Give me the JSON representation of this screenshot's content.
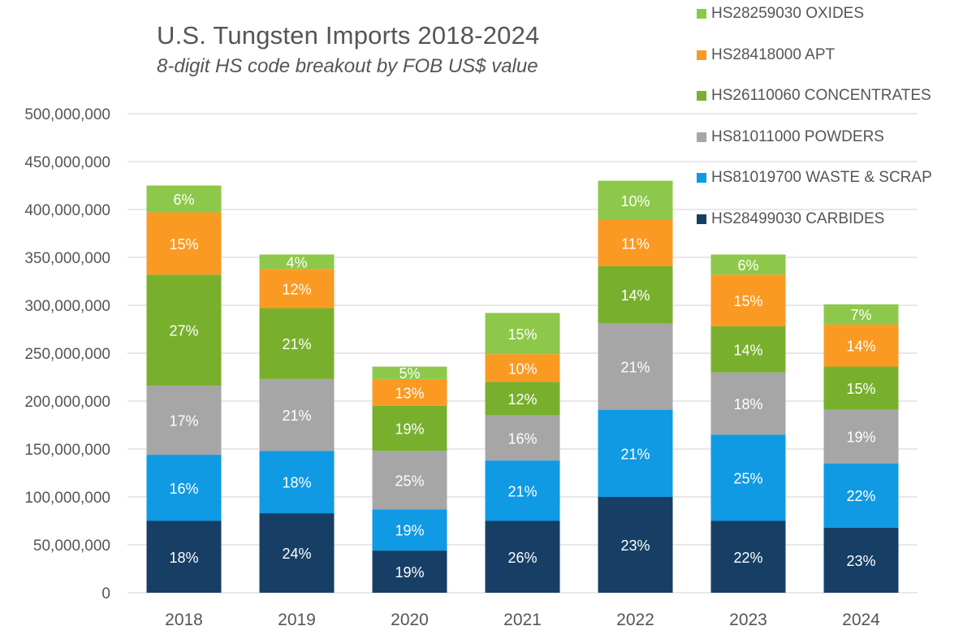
{
  "chart_data": {
    "type": "bar",
    "stacked": true,
    "title": "U.S. Tungsten Imports 2018-2024",
    "subtitle": "8-digit HS code breakout by FOB US$ value",
    "xlabel": "",
    "ylabel": "",
    "ylim": [
      0,
      500000000
    ],
    "yticks": [
      0,
      50000000,
      100000000,
      150000000,
      200000000,
      250000000,
      300000000,
      350000000,
      400000000,
      450000000,
      500000000
    ],
    "ytick_labels": [
      "0",
      "50,000,000",
      "100,000,000",
      "150,000,000",
      "200,000,000",
      "250,000,000",
      "300,000,000",
      "350,000,000",
      "400,000,000",
      "450,000,000",
      "500,000,000"
    ],
    "grid": true,
    "legend_position": "top-right",
    "categories": [
      "2018",
      "2019",
      "2020",
      "2021",
      "2022",
      "2023",
      "2024"
    ],
    "series": [
      {
        "name": "HS28499030 CARBIDES",
        "color": "#173f66",
        "values": [
          75000000,
          83000000,
          44000000,
          75000000,
          100000000,
          75000000,
          68000000
        ],
        "labels": [
          "18%",
          "24%",
          "19%",
          "26%",
          "23%",
          "22%",
          "23%"
        ]
      },
      {
        "name": "HS81019700 WASTE & SCRAP",
        "color": "#0f9ae3",
        "values": [
          69000000,
          65000000,
          43000000,
          63000000,
          91000000,
          90000000,
          67000000
        ],
        "labels": [
          "16%",
          "18%",
          "19%",
          "21%",
          "21%",
          "25%",
          "22%"
        ]
      },
      {
        "name": "HS81011000 POWDERS",
        "color": "#a6a6a6",
        "values": [
          72000000,
          75000000,
          61000000,
          47000000,
          90000000,
          65000000,
          56000000
        ],
        "labels": [
          "17%",
          "21%",
          "25%",
          "16%",
          "21%",
          "18%",
          "19%"
        ]
      },
      {
        "name": "HS26110060  CONCENTRATES",
        "color": "#78b02e",
        "values": [
          116000000,
          74000000,
          47000000,
          35000000,
          60000000,
          48000000,
          45000000
        ],
        "labels": [
          "27%",
          "21%",
          "19%",
          "12%",
          "14%",
          "14%",
          "15%"
        ]
      },
      {
        "name": "HS28418000 APT",
        "color": "#fb9a23",
        "values": [
          65000000,
          41000000,
          28000000,
          29000000,
          48000000,
          54000000,
          44000000
        ],
        "labels": [
          "15%",
          "12%",
          "13%",
          "10%",
          "11%",
          "15%",
          "14%"
        ]
      },
      {
        "name": "HS28259030 OXIDES",
        "color": "#8dc84a",
        "values": [
          28000000,
          15000000,
          13000000,
          43000000,
          41000000,
          21000000,
          21000000
        ],
        "labels": [
          "6%",
          "4%",
          "5%",
          "15%",
          "10%",
          "6%",
          "7%"
        ]
      }
    ],
    "legend_order": [
      5,
      4,
      3,
      2,
      1,
      0
    ]
  },
  "colors": {
    "text": "#555555",
    "grid": "#d9d9d9",
    "label_text": "#ffffff"
  }
}
